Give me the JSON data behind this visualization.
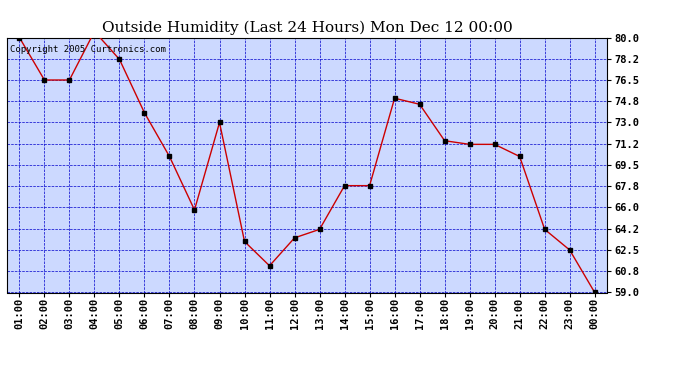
{
  "title": "Outside Humidity (Last 24 Hours) Mon Dec 12 00:00",
  "copyright": "Copyright 2005 Curtronics.com",
  "x_labels": [
    "01:00",
    "02:00",
    "03:00",
    "04:00",
    "05:00",
    "06:00",
    "07:00",
    "08:00",
    "09:00",
    "10:00",
    "11:00",
    "12:00",
    "13:00",
    "14:00",
    "15:00",
    "16:00",
    "17:00",
    "18:00",
    "19:00",
    "20:00",
    "21:00",
    "22:00",
    "23:00",
    "00:00"
  ],
  "x_values": [
    1,
    2,
    3,
    4,
    5,
    6,
    7,
    8,
    9,
    10,
    11,
    12,
    13,
    14,
    15,
    16,
    17,
    18,
    19,
    20,
    21,
    22,
    23,
    24
  ],
  "y_values": [
    80.0,
    76.5,
    76.5,
    80.5,
    78.2,
    73.8,
    70.2,
    65.8,
    73.0,
    63.2,
    61.2,
    63.5,
    64.2,
    67.8,
    67.8,
    75.0,
    74.5,
    71.5,
    71.2,
    71.2,
    70.2,
    64.2,
    62.5,
    59.0
  ],
  "ylim": [
    59.0,
    80.0
  ],
  "yticks": [
    59.0,
    60.8,
    62.5,
    64.2,
    66.0,
    67.8,
    69.5,
    71.2,
    73.0,
    74.8,
    76.5,
    78.2,
    80.0
  ],
  "line_color": "#cc0000",
  "marker_color": "#000000",
  "bg_color": "#ffffff",
  "plot_bg_color": "#ccd9ff",
  "grid_color": "#0000cc",
  "title_fontsize": 11,
  "tick_fontsize": 7.5,
  "copyright_fontsize": 6.5
}
